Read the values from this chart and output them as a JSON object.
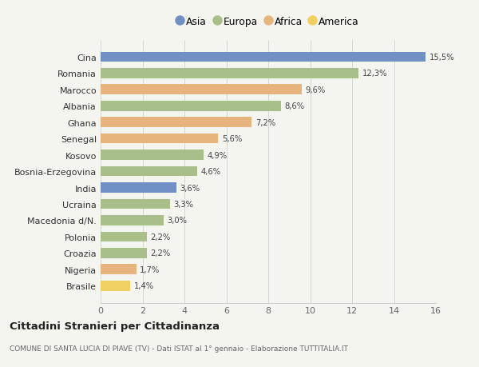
{
  "countries": [
    "Cina",
    "Romania",
    "Marocco",
    "Albania",
    "Ghana",
    "Senegal",
    "Kosovo",
    "Bosnia-Erzegovina",
    "India",
    "Ucraina",
    "Macedonia d/N.",
    "Polonia",
    "Croazia",
    "Nigeria",
    "Brasile"
  ],
  "values": [
    15.5,
    12.3,
    9.6,
    8.6,
    7.2,
    5.6,
    4.9,
    4.6,
    3.6,
    3.3,
    3.0,
    2.2,
    2.2,
    1.7,
    1.4
  ],
  "continents": [
    "Asia",
    "Europa",
    "Africa",
    "Europa",
    "Africa",
    "Africa",
    "Europa",
    "Europa",
    "Asia",
    "Europa",
    "Europa",
    "Europa",
    "Europa",
    "Africa",
    "America"
  ],
  "colors": {
    "Asia": "#7090c4",
    "Europa": "#a8bf8a",
    "Africa": "#e8b47e",
    "America": "#f0d060"
  },
  "legend_order": [
    "Asia",
    "Europa",
    "Africa",
    "America"
  ],
  "xlim": [
    0,
    16
  ],
  "xticks": [
    0,
    2,
    4,
    6,
    8,
    10,
    12,
    14,
    16
  ],
  "title": "Cittadini Stranieri per Cittadinanza",
  "subtitle": "COMUNE DI SANTA LUCIA DI PIAVE (TV) - Dati ISTAT al 1° gennaio - Elaborazione TUTTITALIA.IT",
  "bg_color": "#f5f5f0"
}
